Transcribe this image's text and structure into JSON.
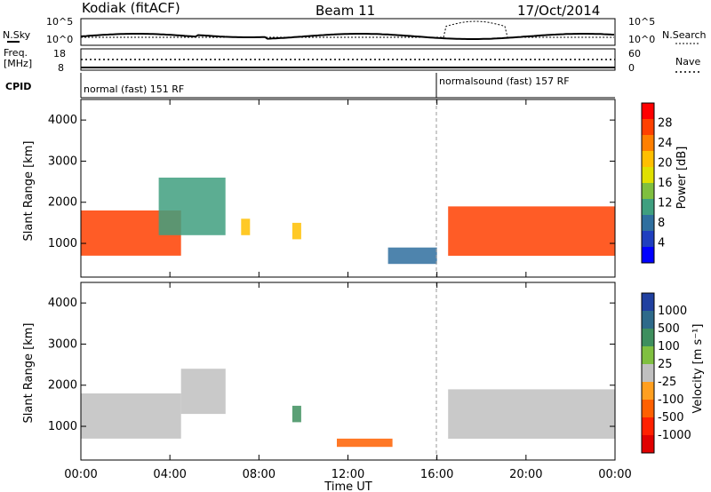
{
  "header": {
    "station": "Kodiak (fitACF)",
    "beam": "Beam 11",
    "date": "17/Oct/2014"
  },
  "top_panels": {
    "nsky_label": "N.Sky",
    "nsky_ticks": [
      "10^5",
      "10^0"
    ],
    "nsearch_label": "N.Search",
    "freq_label_1": "Freq.",
    "freq_label_2": "[MHz]",
    "freq_ticks": [
      "18",
      "8"
    ],
    "nave_label": "Nave",
    "nave_ticks": [
      "60",
      "0"
    ],
    "cpid_label": "CPID",
    "cpid_mode_1": "normal (fast) 151 RF",
    "cpid_mode_2": "normalsound (fast) 157 RF"
  },
  "colorbars": {
    "power": {
      "label": "Power [dB]",
      "ticks": [
        "28",
        "24",
        "20",
        "16",
        "12",
        "8",
        "4"
      ],
      "colors": [
        "#ff0000",
        "#ff4000",
        "#ff7f00",
        "#ffbf00",
        "#e0e000",
        "#7fbf3f",
        "#3f9f7f",
        "#2f6f9f",
        "#1f3fbf",
        "#0000ff"
      ]
    },
    "velocity": {
      "label": "Velocity [m s⁻¹]",
      "ticks": [
        "1000",
        "500",
        "100",
        "25",
        "-25",
        "-100",
        "-500",
        "-1000"
      ],
      "colors": [
        "#2040a0",
        "#2e6a8a",
        "#3e8f5e",
        "#80c040",
        "#c0c0c0",
        "#ff9f20",
        "#ff6000",
        "#ff2000",
        "#e00000"
      ]
    }
  },
  "chart_data": [
    {
      "type": "heatmap",
      "title": "",
      "xlabel": "Time UT",
      "ylabel": "Slant Range [km]",
      "colorbar_label": "Power [dB]",
      "xlim": [
        0,
        24
      ],
      "ylim": [
        180,
        4500
      ],
      "yticks": [
        "4000",
        "3000",
        "2000",
        "1000"
      ],
      "xticks": [
        "00:00",
        "04:00",
        "08:00",
        "12:00",
        "16:00",
        "20:00",
        "00:00"
      ],
      "regions": [
        {
          "t0": 0.0,
          "t1": 4.5,
          "r0": 700,
          "r1": 1800,
          "power": 24
        },
        {
          "t0": 3.5,
          "t1": 6.5,
          "r0": 1200,
          "r1": 2600,
          "power": 10
        },
        {
          "t0": 7.2,
          "t1": 7.6,
          "r0": 1200,
          "r1": 1600,
          "power": 18
        },
        {
          "t0": 9.5,
          "t1": 9.9,
          "r0": 1100,
          "r1": 1500,
          "power": 20
        },
        {
          "t0": 13.8,
          "t1": 16.0,
          "r0": 500,
          "r1": 900,
          "power": 8
        },
        {
          "t0": 16.5,
          "t1": 24.0,
          "r0": 700,
          "r1": 1900,
          "power": 24
        }
      ]
    },
    {
      "type": "heatmap",
      "title": "",
      "xlabel": "Time UT",
      "ylabel": "Slant Range [km]",
      "colorbar_label": "Velocity [m s⁻¹]",
      "xlim": [
        0,
        24
      ],
      "ylim": [
        180,
        4500
      ],
      "yticks": [
        "4000",
        "3000",
        "2000",
        "1000"
      ],
      "xticks": [
        "00:00",
        "04:00",
        "08:00",
        "12:00",
        "16:00",
        "20:00",
        "00:00"
      ],
      "regions": [
        {
          "t0": 0.0,
          "t1": 4.5,
          "r0": 700,
          "r1": 1800,
          "velocity": 0
        },
        {
          "t0": 4.5,
          "t1": 6.5,
          "r0": 1300,
          "r1": 2400,
          "velocity": 0
        },
        {
          "t0": 9.5,
          "t1": 9.9,
          "r0": 1100,
          "r1": 1500,
          "velocity": 300
        },
        {
          "t0": 11.5,
          "t1": 14.0,
          "r0": 500,
          "r1": 700,
          "velocity": -200
        },
        {
          "t0": 16.5,
          "t1": 24.0,
          "r0": 700,
          "r1": 1900,
          "velocity": 0
        }
      ]
    }
  ]
}
